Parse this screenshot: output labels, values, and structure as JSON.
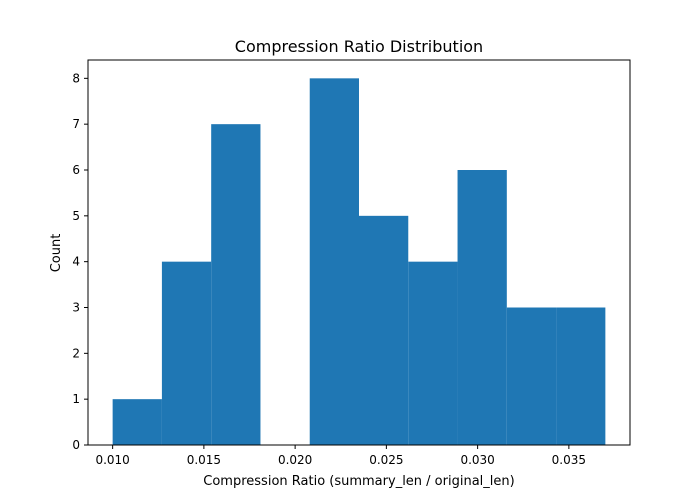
{
  "chart_data": {
    "type": "bar",
    "subtype": "histogram",
    "title": "Compression Ratio Distribution",
    "xlabel": "Compression Ratio (summary_len / original_len)",
    "ylabel": "Count",
    "bin_edges": [
      0.01,
      0.0127,
      0.0154,
      0.0181,
      0.0208,
      0.0235,
      0.0262,
      0.0289,
      0.0316,
      0.0343,
      0.037
    ],
    "counts": [
      1,
      4,
      7,
      0,
      8,
      5,
      4,
      6,
      3,
      3
    ],
    "xlim": [
      0.00865,
      0.03835
    ],
    "ylim": [
      0,
      8.4
    ],
    "x_ticks": [
      "0.010",
      "0.015",
      "0.020",
      "0.025",
      "0.030",
      "0.035"
    ],
    "y_ticks": [
      "0",
      "1",
      "2",
      "3",
      "4",
      "5",
      "6",
      "7",
      "8"
    ],
    "bar_color": "#1f77b4",
    "grid": false,
    "legend": "none"
  }
}
